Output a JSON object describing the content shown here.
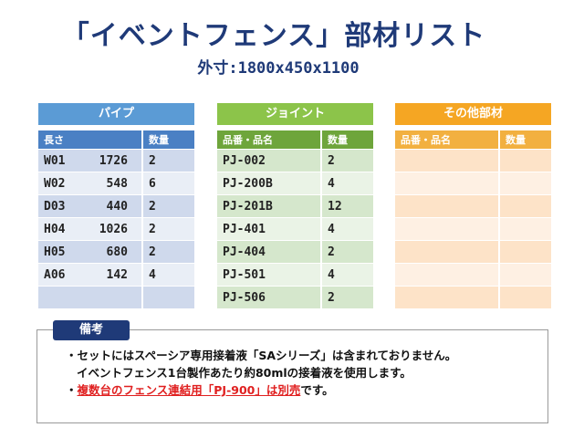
{
  "title": "「イベントフェンス」部材リスト",
  "subtitle": "外寸:1800x450x1100",
  "pipe": {
    "header": "パイプ",
    "col1": "長さ",
    "col2": "数量",
    "rows": [
      {
        "code": "W01",
        "len": "1726",
        "qty": "2"
      },
      {
        "code": "W02",
        "len": "548",
        "qty": "6"
      },
      {
        "code": "D03",
        "len": "440",
        "qty": "2"
      },
      {
        "code": "H04",
        "len": "1026",
        "qty": "2"
      },
      {
        "code": "H05",
        "len": "680",
        "qty": "2"
      },
      {
        "code": "A06",
        "len": "142",
        "qty": "4"
      }
    ]
  },
  "joint": {
    "header": "ジョイント",
    "col1": "品番・品名",
    "col2": "数量",
    "rows": [
      {
        "code": "PJ-002",
        "qty": "2"
      },
      {
        "code": "PJ-200B",
        "qty": "4"
      },
      {
        "code": "PJ-201B",
        "qty": "12"
      },
      {
        "code": "PJ-401",
        "qty": "4"
      },
      {
        "code": "PJ-404",
        "qty": "2"
      },
      {
        "code": "PJ-501",
        "qty": "4"
      },
      {
        "code": "PJ-506",
        "qty": "2"
      }
    ]
  },
  "other": {
    "header": "その他部材",
    "col1": "品番・品名",
    "col2": "数量"
  },
  "notes": {
    "label": "備考",
    "line1": "・セットにはスペーシア専用接着液「SAシリーズ」は含まれておりません。",
    "line2": "イベントフェンス1台製作あたり約80mlの接着液を使用します。",
    "line3_bullet": "・",
    "line3_red": "複数台のフェンス連結用「PJ-900」は別売",
    "line3_tail": "です。"
  }
}
